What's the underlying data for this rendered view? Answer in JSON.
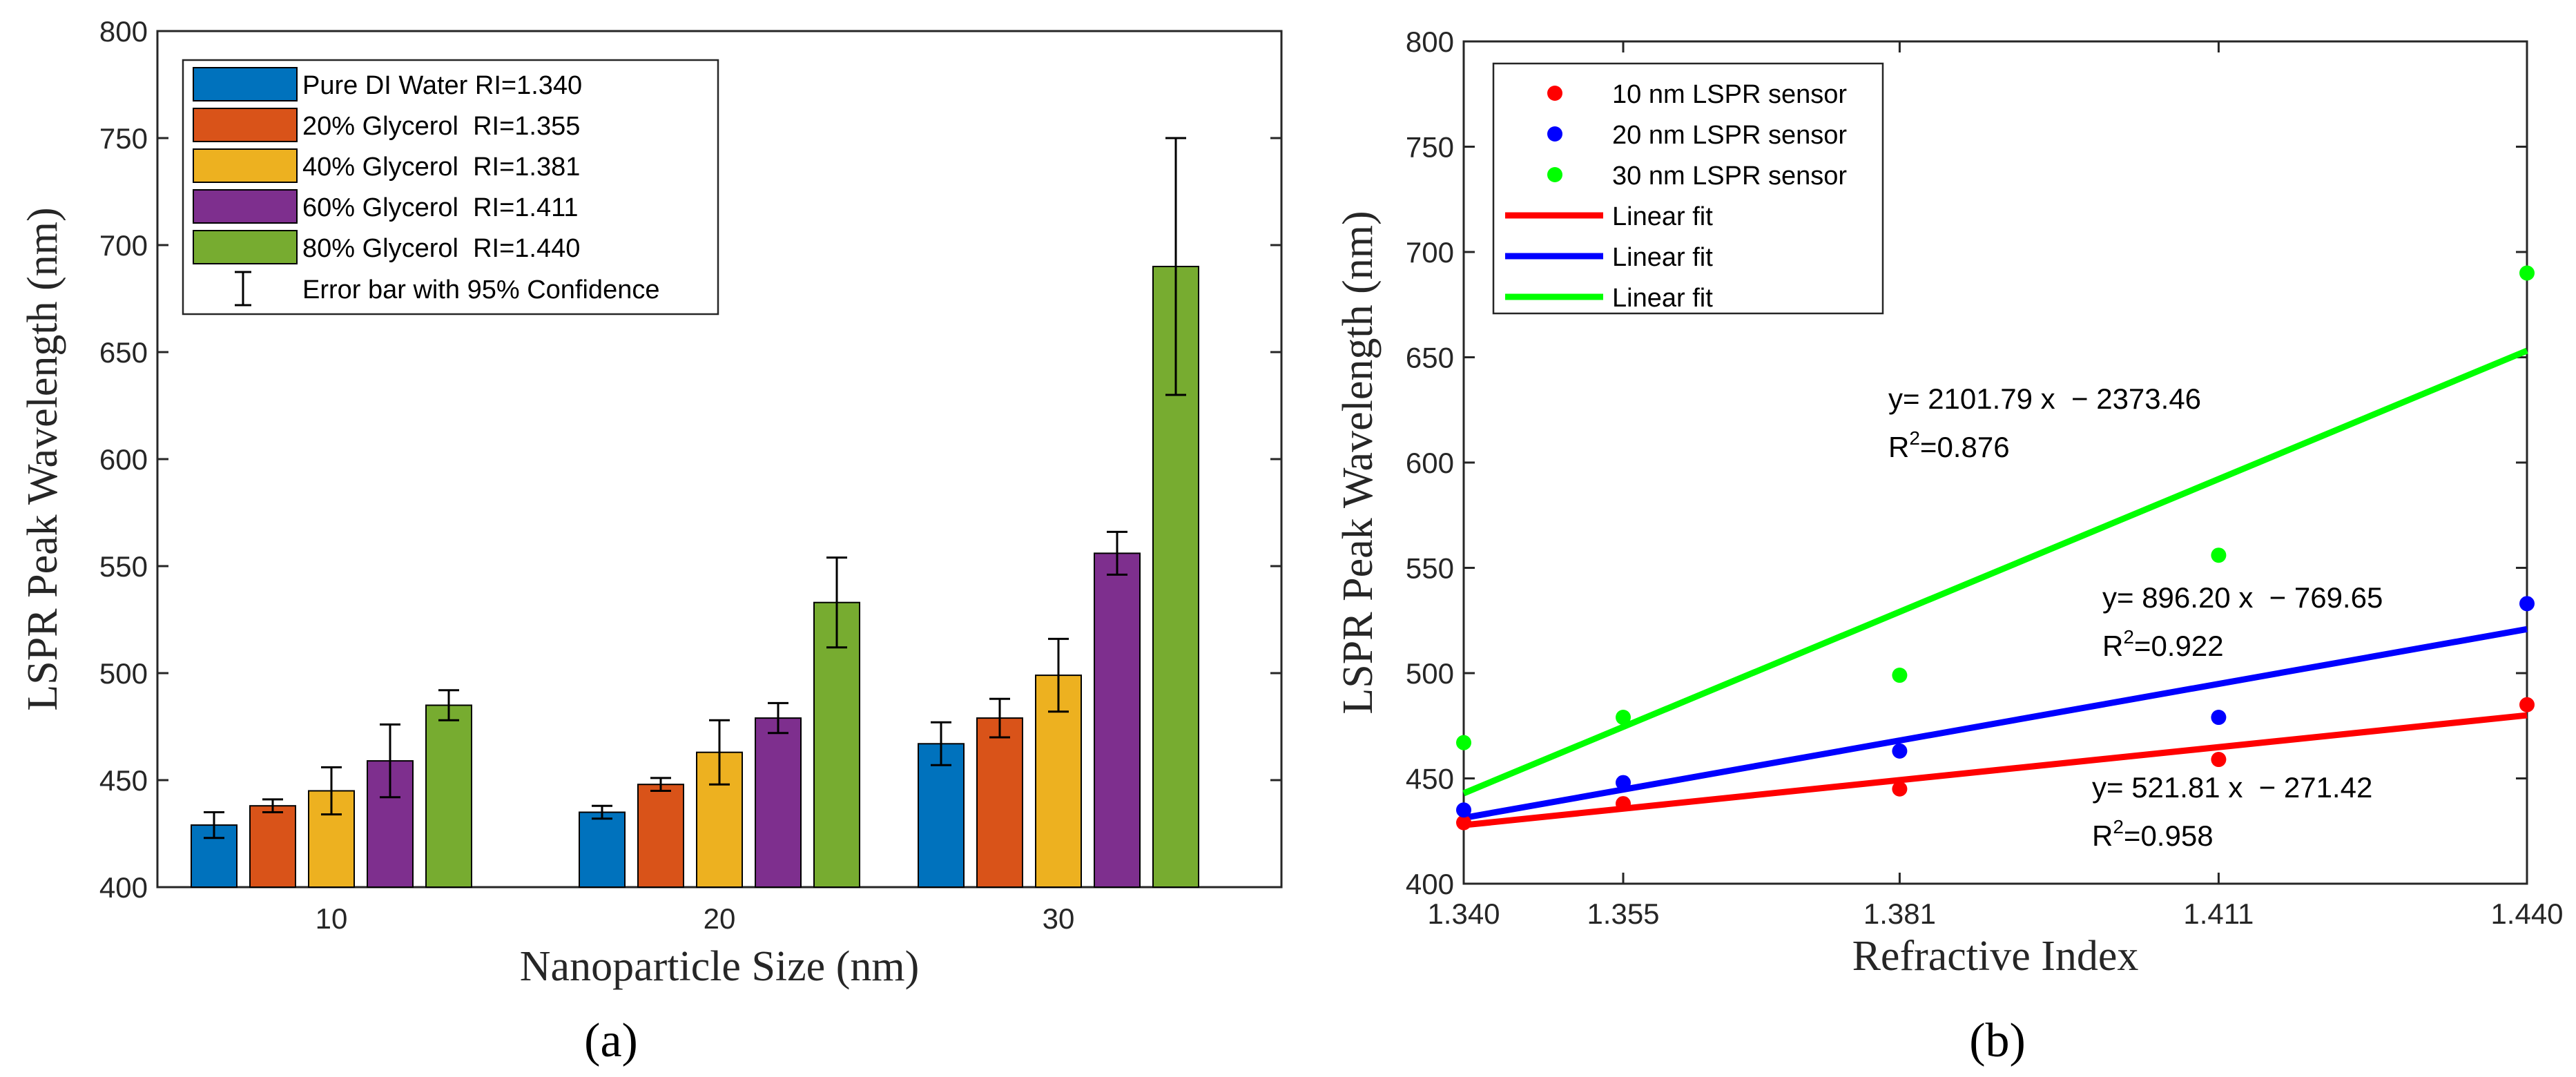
{
  "figure": {
    "panel_labels": [
      "(a)",
      "(b)"
    ]
  },
  "chart_data": [
    {
      "type": "bar",
      "xlabel": "Nanoparticle Size (nm)",
      "ylabel": "LSPR Peak Wavelength (nm)",
      "ylim": [
        400,
        800
      ],
      "yticks": [
        "400",
        "450",
        "500",
        "550",
        "600",
        "650",
        "700",
        "750",
        "800"
      ],
      "categories": [
        "10",
        "20",
        "30"
      ],
      "series": [
        {
          "name": "Pure DI Water RI=1.340",
          "color": "#0072BD",
          "values": [
            429,
            435,
            467
          ],
          "errors": [
            6,
            3,
            10
          ]
        },
        {
          "name": "20% Glycerol  RI=1.355",
          "color": "#D95319",
          "values": [
            438,
            448,
            479
          ],
          "errors": [
            3,
            3,
            9
          ]
        },
        {
          "name": "40% Glycerol  RI=1.381",
          "color": "#EDB120",
          "values": [
            445,
            463,
            499
          ],
          "errors": [
            11,
            15,
            17
          ]
        },
        {
          "name": "60% Glycerol  RI=1.411",
          "color": "#7E2F8E",
          "values": [
            459,
            479,
            556
          ],
          "errors": [
            17,
            7,
            10
          ]
        },
        {
          "name": "80% Glycerol  RI=1.440",
          "color": "#77AC30",
          "values": [
            485,
            533,
            690
          ],
          "errors": [
            7,
            21,
            60
          ]
        }
      ],
      "errorbar_legend": "Error bar with 95% Confidence",
      "legend_position": "top-left",
      "grid": false
    },
    {
      "type": "scatter",
      "xlabel": "Refractive Index",
      "ylabel": "LSPR Peak Wavelength (nm)",
      "xlim": [
        1.34,
        1.44
      ],
      "ylim": [
        400,
        800
      ],
      "xticks": [
        "1.340",
        "1.355",
        "1.381",
        "1.411",
        "1.440"
      ],
      "yticks": [
        "400",
        "450",
        "500",
        "550",
        "600",
        "650",
        "700",
        "750",
        "800"
      ],
      "x": [
        1.34,
        1.355,
        1.381,
        1.411,
        1.44
      ],
      "series": [
        {
          "name": "10 nm LSPR sensor",
          "color": "#FF0000",
          "values": [
            429,
            438,
            445,
            459,
            485
          ]
        },
        {
          "name": "20 nm LSPR sensor",
          "color": "#0000FF",
          "values": [
            435,
            448,
            463,
            479,
            533
          ]
        },
        {
          "name": "30 nm LSPR sensor",
          "color": "#00FF00",
          "values": [
            467,
            479,
            499,
            556,
            690
          ]
        }
      ],
      "fits": [
        {
          "name": "Linear fit",
          "color": "#FF0000",
          "slope": 521.81,
          "intercept": -271.42,
          "equation": "y= 521.81 x  − 271.42",
          "r2_label": "R",
          "r2_sup": "2",
          "r2_value": "=0.958"
        },
        {
          "name": "Linear fit",
          "color": "#0000FF",
          "slope": 896.2,
          "intercept": -769.65,
          "equation": "y= 896.20 x  − 769.65",
          "r2_label": "R",
          "r2_sup": "2",
          "r2_value": "=0.922"
        },
        {
          "name": "Linear fit",
          "color": "#00FF00",
          "slope": 2101.79,
          "intercept": -2373.46,
          "equation": "y= 2101.79 x  − 2373.46",
          "r2_label": "R",
          "r2_sup": "2",
          "r2_value": "=0.876"
        }
      ],
      "legend_position": "top-left",
      "grid": false
    }
  ]
}
